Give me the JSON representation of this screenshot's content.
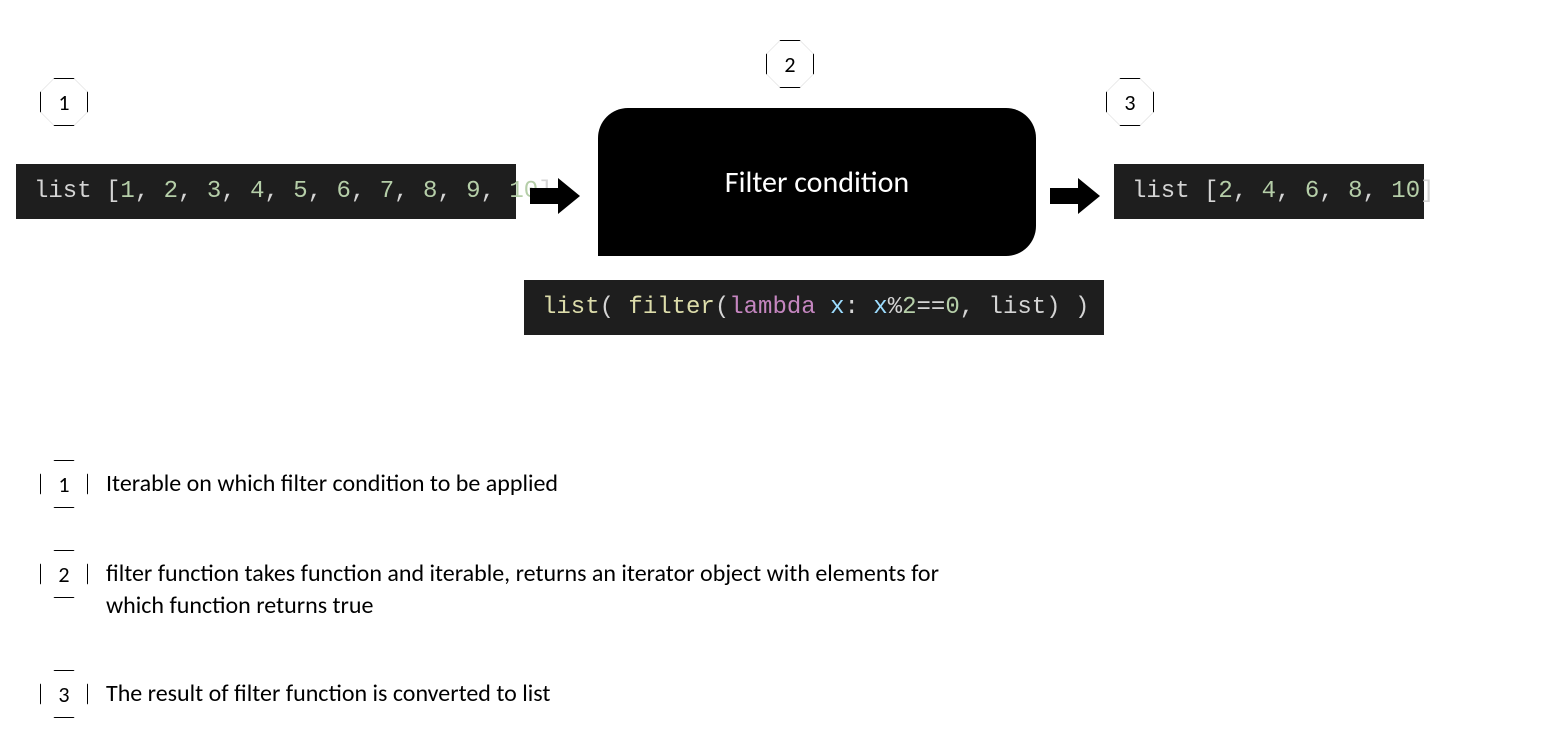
{
  "diagram": {
    "type": "flowchart",
    "background_color": "#ffffff",
    "code_background": "#1e1e1e",
    "code_text_color": "#d4d4d4",
    "code_font": "Consolas",
    "code_fontsize": 24,
    "filter_box_background": "#000000",
    "filter_box_text_color": "#ffffff",
    "filter_box_fontsize": 30,
    "arrow_color": "#000000",
    "octagon_border_color": "#000000",
    "octagon_fill": "#ffffff",
    "octagon_fontsize": 22,
    "legend_fontsize": 24,
    "token_colors": {
      "keyword": "#569cd6",
      "function": "#dcdcaa",
      "lambda": "#c586c0",
      "param": "#9cdcfe",
      "number": "#b5cea8",
      "operator": "#d4d4d4",
      "plain": "#d4d4d4"
    }
  },
  "badges": {
    "top1": "1",
    "top2": "2",
    "top3": "3"
  },
  "input_code": {
    "prefix": "list ",
    "open": "[",
    "values": [
      "1",
      "2",
      "3",
      "4",
      "5",
      "6",
      "7",
      "8",
      "9",
      "10"
    ],
    "sep": ", ",
    "close": "]"
  },
  "filter_label": "Filter condition",
  "output_code": {
    "prefix": "list ",
    "open": "[",
    "values": [
      "2",
      "4",
      "6",
      "8",
      "10"
    ],
    "sep": ", ",
    "close": "]"
  },
  "expr": {
    "t1": "list",
    "t2": "( ",
    "t3": "filter",
    "t4": "(",
    "t5": "lambda",
    "t6": " x",
    "t7": ": ",
    "t8": "x",
    "t9": "%",
    "t10": "2",
    "t11": "==",
    "t12": "0",
    "t13": ", ",
    "t14": "list",
    "t15": ") )"
  },
  "legend": {
    "n1": "1",
    "d1": "Iterable on which filter condition to be applied",
    "n2": "2",
    "d2": "filter function takes function and iterable, returns an iterator object with elements for which function returns true",
    "n3": "3",
    "d3": "The result of filter function is converted to list"
  }
}
